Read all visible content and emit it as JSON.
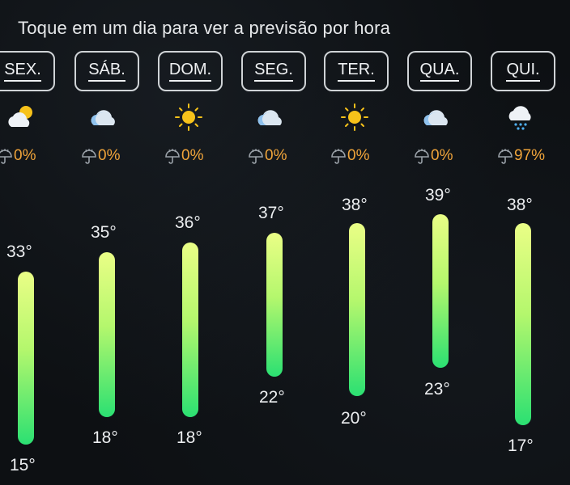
{
  "instruction": "Toque em um dia para ver a previsão por hora",
  "days": [
    {
      "label": "SEX.",
      "icon": "partly-sunny-cloud-icon",
      "precip": "0%",
      "high": "33°",
      "low": "15°"
    },
    {
      "label": "SÁB.",
      "icon": "cloud-icon",
      "precip": "0%",
      "high": "35°",
      "low": "18°"
    },
    {
      "label": "DOM.",
      "icon": "sun-icon",
      "precip": "0%",
      "high": "36°",
      "low": "18°"
    },
    {
      "label": "SEG.",
      "icon": "cloud-icon",
      "precip": "0%",
      "high": "37°",
      "low": "22°"
    },
    {
      "label": "TER.",
      "icon": "sun-icon",
      "precip": "0%",
      "high": "38°",
      "low": "20°"
    },
    {
      "label": "QUA.",
      "icon": "cloud-icon",
      "precip": "0%",
      "high": "39°",
      "low": "23°"
    },
    {
      "label": "QUI.",
      "icon": "rain-cloud-icon",
      "precip": "97%",
      "high": "38°",
      "low": "17°"
    }
  ],
  "colors": {
    "precip": "#f0a43a",
    "bar_top": "#eafe86",
    "bar_bottom": "#2be072",
    "sun": "#f7c21a",
    "cloud": "#eef2f6"
  }
}
